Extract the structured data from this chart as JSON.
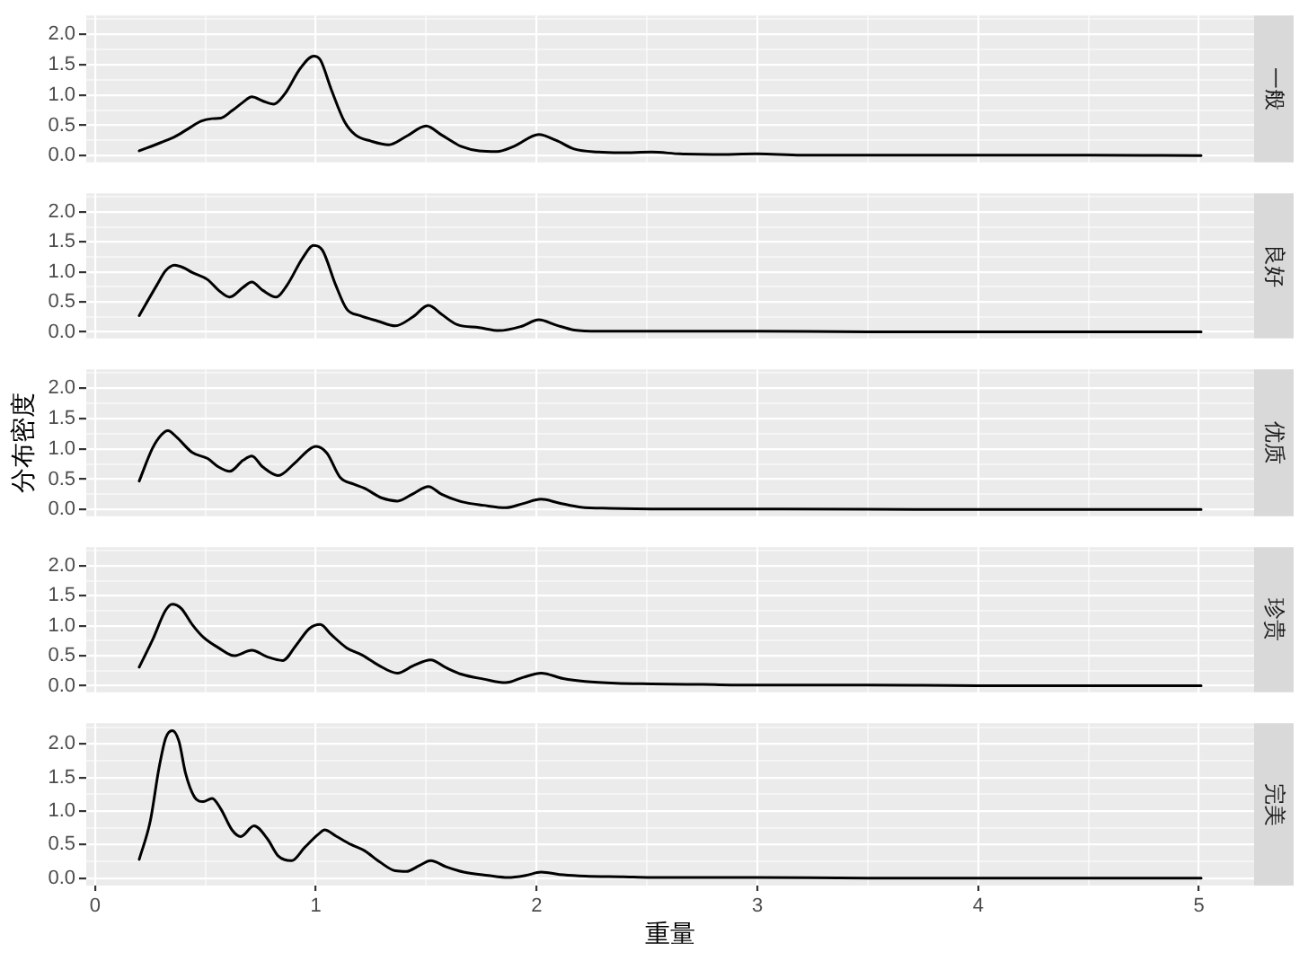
{
  "chart_data": [
    {
      "type": "line",
      "title": "一般",
      "x": [
        0.2,
        0.3,
        0.36,
        0.42,
        0.48,
        0.53,
        0.57,
        0.62,
        0.67,
        0.71,
        0.76,
        0.81,
        0.86,
        0.93,
        0.99,
        1.02,
        1.07,
        1.13,
        1.18,
        1.25,
        1.33,
        1.41,
        1.5,
        1.57,
        1.66,
        1.74,
        1.82,
        1.9,
        2.01,
        2.09,
        2.17,
        2.28,
        2.38,
        2.52,
        2.65,
        2.8,
        3.0,
        3.2,
        3.5,
        4.0,
        4.5,
        5.01
      ],
      "values": [
        0.08,
        0.22,
        0.31,
        0.44,
        0.57,
        0.61,
        0.62,
        0.74,
        0.88,
        0.97,
        0.9,
        0.85,
        1.02,
        1.44,
        1.64,
        1.58,
        1.09,
        0.56,
        0.34,
        0.24,
        0.18,
        0.32,
        0.49,
        0.34,
        0.15,
        0.08,
        0.07,
        0.16,
        0.35,
        0.25,
        0.11,
        0.06,
        0.05,
        0.06,
        0.03,
        0.02,
        0.03,
        0.01,
        0.01,
        0.01,
        0.01,
        0
      ],
      "color": "#000000",
      "xlim": [
        -0.04,
        5.25
      ],
      "xticks": [
        0,
        {
          "value": 0.5,
          "label": null
        },
        1,
        {
          "value": 1.5,
          "label": null
        },
        2,
        {
          "value": 2.5,
          "label": null
        },
        3,
        {
          "value": 3.5,
          "label": null
        },
        4,
        {
          "value": 4.5,
          "label": null
        },
        5
      ],
      "ylim": [
        -0.11,
        2.31
      ],
      "yticks": [
        {
          "value": 0,
          "label": "0.0"
        },
        {
          "value": 0.25,
          "label": null
        },
        {
          "value": 0.5,
          "label": "0.5"
        },
        {
          "value": 0.75,
          "label": null
        },
        {
          "value": 1,
          "label": "1.0"
        },
        {
          "value": 1.25,
          "label": null
        },
        {
          "value": 1.5,
          "label": "1.5"
        },
        {
          "value": 1.75,
          "label": null
        },
        {
          "value": 2,
          "label": "2.0"
        },
        {
          "value": 2.25,
          "label": null
        }
      ],
      "grid": true,
      "tick_labels": "y"
    },
    {
      "type": "line",
      "title": "良好",
      "x": [
        0.2,
        0.28,
        0.32,
        0.36,
        0.4,
        0.44,
        0.51,
        0.56,
        0.61,
        0.67,
        0.71,
        0.76,
        0.82,
        0.87,
        0.94,
        0.99,
        1.03,
        1.09,
        1.14,
        1.2,
        1.28,
        1.36,
        1.44,
        1.51,
        1.57,
        1.64,
        1.74,
        1.83,
        1.93,
        2.01,
        2.09,
        2.17,
        2.28,
        2.5,
        3.0,
        3.5,
        4.0,
        5.01
      ],
      "values": [
        0.27,
        0.78,
        1.02,
        1.11,
        1.07,
        0.99,
        0.87,
        0.69,
        0.58,
        0.74,
        0.83,
        0.69,
        0.58,
        0.78,
        1.23,
        1.44,
        1.36,
        0.78,
        0.38,
        0.27,
        0.18,
        0.1,
        0.25,
        0.44,
        0.29,
        0.12,
        0.07,
        0.02,
        0.09,
        0.2,
        0.11,
        0.03,
        0.01,
        0.01,
        0.01,
        0,
        0,
        0
      ],
      "color": "#000000",
      "xlim": [
        -0.04,
        5.25
      ],
      "xticks": [
        0,
        {
          "value": 0.5,
          "label": null
        },
        1,
        {
          "value": 1.5,
          "label": null
        },
        2,
        {
          "value": 2.5,
          "label": null
        },
        3,
        {
          "value": 3.5,
          "label": null
        },
        4,
        {
          "value": 4.5,
          "label": null
        },
        5
      ],
      "ylim": [
        -0.11,
        2.31
      ],
      "yticks": [
        {
          "value": 0,
          "label": "0.0"
        },
        {
          "value": 0.25,
          "label": null
        },
        {
          "value": 0.5,
          "label": "0.5"
        },
        {
          "value": 0.75,
          "label": null
        },
        {
          "value": 1,
          "label": "1.0"
        },
        {
          "value": 1.25,
          "label": null
        },
        {
          "value": 1.5,
          "label": "1.5"
        },
        {
          "value": 1.75,
          "label": null
        },
        {
          "value": 2,
          "label": "2.0"
        },
        {
          "value": 2.25,
          "label": null
        }
      ],
      "grid": true,
      "tick_labels": "y"
    },
    {
      "type": "line",
      "title": "优质",
      "ylabel": "分布密度",
      "x": [
        0.2,
        0.26,
        0.3,
        0.33,
        0.37,
        0.44,
        0.51,
        0.56,
        0.61,
        0.67,
        0.71,
        0.76,
        0.83,
        0.9,
        0.97,
        1.0,
        1.05,
        1.11,
        1.17,
        1.22,
        1.3,
        1.37,
        1.44,
        1.51,
        1.57,
        1.66,
        1.76,
        1.86,
        1.94,
        2.02,
        2.1,
        2.2,
        2.33,
        2.6,
        3.0,
        4.0,
        5.01
      ],
      "values": [
        0.47,
        1.01,
        1.23,
        1.3,
        1.19,
        0.94,
        0.84,
        0.7,
        0.63,
        0.81,
        0.88,
        0.7,
        0.56,
        0.75,
        0.99,
        1.04,
        0.93,
        0.53,
        0.42,
        0.35,
        0.19,
        0.14,
        0.26,
        0.38,
        0.25,
        0.13,
        0.07,
        0.03,
        0.1,
        0.17,
        0.11,
        0.04,
        0.02,
        0.01,
        0.01,
        0,
        0
      ],
      "color": "#000000",
      "xlim": [
        -0.04,
        5.25
      ],
      "xticks": [
        0,
        {
          "value": 0.5,
          "label": null
        },
        1,
        {
          "value": 1.5,
          "label": null
        },
        2,
        {
          "value": 2.5,
          "label": null
        },
        3,
        {
          "value": 3.5,
          "label": null
        },
        4,
        {
          "value": 4.5,
          "label": null
        },
        5
      ],
      "ylim": [
        -0.11,
        2.31
      ],
      "yticks": [
        {
          "value": 0,
          "label": "0.0"
        },
        {
          "value": 0.25,
          "label": null
        },
        {
          "value": 0.5,
          "label": "0.5"
        },
        {
          "value": 0.75,
          "label": null
        },
        {
          "value": 1,
          "label": "1.0"
        },
        {
          "value": 1.25,
          "label": null
        },
        {
          "value": 1.5,
          "label": "1.5"
        },
        {
          "value": 1.75,
          "label": null
        },
        {
          "value": 2,
          "label": "2.0"
        },
        {
          "value": 2.25,
          "label": null
        }
      ],
      "grid": true,
      "tick_labels": "y"
    },
    {
      "type": "line",
      "title": "珍贵",
      "x": [
        0.2,
        0.26,
        0.32,
        0.35,
        0.39,
        0.44,
        0.49,
        0.56,
        0.63,
        0.71,
        0.78,
        0.85,
        0.91,
        0.97,
        1.02,
        1.07,
        1.14,
        1.21,
        1.28,
        1.37,
        1.44,
        1.52,
        1.59,
        1.66,
        1.76,
        1.86,
        1.94,
        2.02,
        2.12,
        2.22,
        2.36,
        2.52,
        2.75,
        3.0,
        3.5,
        4.0,
        5.01
      ],
      "values": [
        0.31,
        0.76,
        1.26,
        1.36,
        1.29,
        1.02,
        0.81,
        0.63,
        0.5,
        0.59,
        0.48,
        0.42,
        0.67,
        0.95,
        1.02,
        0.85,
        0.63,
        0.51,
        0.35,
        0.21,
        0.33,
        0.43,
        0.3,
        0.19,
        0.11,
        0.05,
        0.14,
        0.21,
        0.12,
        0.07,
        0.04,
        0.03,
        0.02,
        0.01,
        0.01,
        0,
        0
      ],
      "color": "#000000",
      "xlim": [
        -0.04,
        5.25
      ],
      "xticks": [
        0,
        {
          "value": 0.5,
          "label": null
        },
        1,
        {
          "value": 1.5,
          "label": null
        },
        2,
        {
          "value": 2.5,
          "label": null
        },
        3,
        {
          "value": 3.5,
          "label": null
        },
        4,
        {
          "value": 4.5,
          "label": null
        },
        5
      ],
      "ylim": [
        -0.11,
        2.31
      ],
      "yticks": [
        {
          "value": 0,
          "label": "0.0"
        },
        {
          "value": 0.25,
          "label": null
        },
        {
          "value": 0.5,
          "label": "0.5"
        },
        {
          "value": 0.75,
          "label": null
        },
        {
          "value": 1,
          "label": "1.0"
        },
        {
          "value": 1.25,
          "label": null
        },
        {
          "value": 1.5,
          "label": "1.5"
        },
        {
          "value": 1.75,
          "label": null
        },
        {
          "value": 2,
          "label": "2.0"
        },
        {
          "value": 2.25,
          "label": null
        }
      ],
      "grid": true,
      "tick_labels": "y"
    },
    {
      "type": "line",
      "title": "完美",
      "xlabel": "重量",
      "x": [
        0.2,
        0.25,
        0.29,
        0.32,
        0.35,
        0.38,
        0.41,
        0.45,
        0.49,
        0.53,
        0.57,
        0.62,
        0.66,
        0.72,
        0.78,
        0.83,
        0.89,
        0.95,
        1.01,
        1.04,
        1.09,
        1.16,
        1.22,
        1.29,
        1.36,
        1.41,
        1.47,
        1.52,
        1.59,
        1.67,
        1.78,
        1.87,
        1.95,
        2.02,
        2.12,
        2.22,
        2.39,
        2.52,
        3.0,
        3.5,
        5.01
      ],
      "values": [
        0.28,
        0.85,
        1.65,
        2.09,
        2.2,
        2.04,
        1.56,
        1.21,
        1.14,
        1.19,
        1.03,
        0.72,
        0.62,
        0.78,
        0.59,
        0.33,
        0.26,
        0.46,
        0.65,
        0.72,
        0.63,
        0.5,
        0.41,
        0.24,
        0.11,
        0.1,
        0.19,
        0.26,
        0.17,
        0.09,
        0.04,
        0.01,
        0.04,
        0.09,
        0.05,
        0.03,
        0.02,
        0.01,
        0.01,
        0,
        0
      ],
      "color": "#000000",
      "xlim": [
        -0.04,
        5.25
      ],
      "xticks": [
        0,
        {
          "value": 0.5,
          "label": null
        },
        1,
        {
          "value": 1.5,
          "label": null
        },
        2,
        {
          "value": 2.5,
          "label": null
        },
        3,
        {
          "value": 3.5,
          "label": null
        },
        4,
        {
          "value": 4.5,
          "label": null
        },
        5
      ],
      "ylim": [
        -0.11,
        2.31
      ],
      "yticks": [
        {
          "value": 0,
          "label": "0.0"
        },
        {
          "value": 0.25,
          "label": null
        },
        {
          "value": 0.5,
          "label": "0.5"
        },
        {
          "value": 0.75,
          "label": null
        },
        {
          "value": 1,
          "label": "1.0"
        },
        {
          "value": 1.25,
          "label": null
        },
        {
          "value": 1.5,
          "label": "1.5"
        },
        {
          "value": 1.75,
          "label": null
        },
        {
          "value": 2,
          "label": "2.0"
        },
        {
          "value": 2.25,
          "label": null
        }
      ],
      "grid": true
    }
  ]
}
